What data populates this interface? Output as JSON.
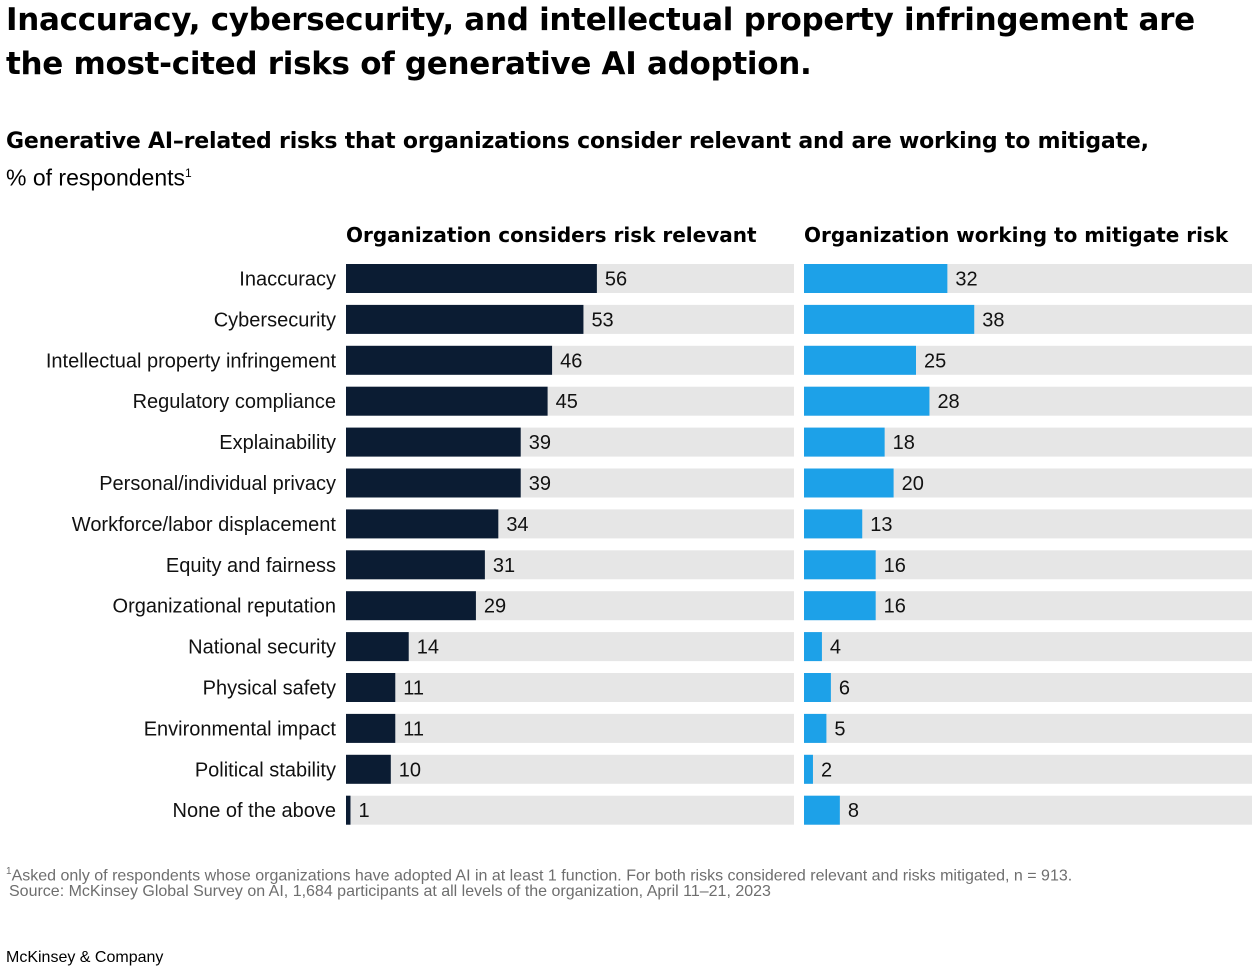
{
  "headline": "Inaccuracy, cybersecurity, and intellectual property infringement are the most-cited risks of generative AI adoption.",
  "subtitle": "Generative AI–related risks that organizations consider relevant and are working to mitigate,",
  "unit": "% of respondents",
  "unit_footnote_marker": "1",
  "footnote_marker": "1",
  "footnote": "Asked only of respondents whose organizations have adopted AI in at least 1 function. For both risks considered relevant and risks mitigated, n = 913.",
  "source": "Source: McKinsey Global Survey on AI, 1,684 participants at all levels of the organization, April 11–21, 2023",
  "brand": "McKinsey & Company",
  "chart_data": {
    "type": "bar",
    "orientation": "horizontal",
    "categories": [
      "Inaccuracy",
      "Cybersecurity",
      "Intellectual property infringement",
      "Regulatory compliance",
      "Explainability",
      "Personal/individual privacy",
      "Workforce/labor displacement",
      "Equity and fairness",
      "Organizational reputation",
      "National security",
      "Physical safety",
      "Environmental impact",
      "Political stability",
      "None of the above"
    ],
    "series": [
      {
        "name": "Organization considers risk relevant",
        "color": "#0b1c33",
        "values": [
          56,
          53,
          46,
          45,
          39,
          39,
          34,
          31,
          29,
          14,
          11,
          11,
          10,
          1
        ]
      },
      {
        "name": "Organization working to mitigate risk",
        "color": "#1da1e8",
        "values": [
          32,
          38,
          25,
          28,
          18,
          20,
          13,
          16,
          16,
          4,
          6,
          5,
          2,
          8
        ]
      }
    ],
    "xlim": [
      0,
      100
    ],
    "track_color": "#e6e6e6",
    "grid": false,
    "legend": "panel headers above each column"
  }
}
